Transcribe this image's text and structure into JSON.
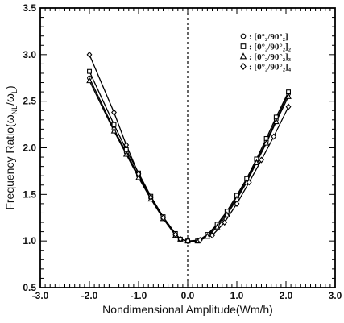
{
  "chart_data": {
    "type": "line",
    "title": "",
    "xlabel": "Nondimensional Amplitude(Wm/h)",
    "ylabel": "Frequency Ratio(ω_NL/ω_L)",
    "ylabel_parts": {
      "main": "Frequency Ratio(ω",
      "sub1": "NL",
      "mid": "/ω",
      "sub2": "L",
      "end": ")"
    },
    "xlim": [
      -3.0,
      3.0
    ],
    "ylim": [
      0.5,
      3.5
    ],
    "xticks": [
      -3.0,
      -2.0,
      -1.0,
      0.0,
      1.0,
      2.0,
      3.0
    ],
    "xtick_labels": [
      "-3.0",
      "-2.0",
      "-1.0",
      "0.0",
      "1.0",
      "2.0",
      "3.0"
    ],
    "yticks": [
      0.5,
      1.0,
      1.5,
      2.0,
      2.5,
      3.0,
      3.5
    ],
    "ytick_labels": [
      "0.5",
      "1.0",
      "1.5",
      "2.0",
      "2.5",
      "3.0",
      "3.5"
    ],
    "grid": false,
    "legend_position": "top-right",
    "series": [
      {
        "name": "[0°₂/90°₂]",
        "marker": "circle",
        "x": [
          -2.0,
          -1.5,
          -1.25,
          -1.0,
          -0.75,
          -0.5,
          -0.25,
          -0.15,
          0.0,
          0.2,
          0.4,
          0.6,
          0.8,
          1.0,
          1.2,
          1.4,
          1.6,
          1.8,
          2.05
        ],
        "y": [
          2.75,
          2.2,
          1.95,
          1.7,
          1.46,
          1.25,
          1.07,
          1.02,
          1.0,
          1.0,
          1.06,
          1.17,
          1.3,
          1.47,
          1.65,
          1.86,
          2.07,
          2.3,
          2.58
        ]
      },
      {
        "name": "[0°₂/90°₂]₂",
        "marker": "square",
        "x": [
          -2.0,
          -1.5,
          -1.25,
          -1.0,
          -0.75,
          -0.5,
          -0.25,
          -0.15,
          0.0,
          0.2,
          0.4,
          0.6,
          0.8,
          1.0,
          1.2,
          1.4,
          1.6,
          1.8,
          2.05
        ],
        "y": [
          2.82,
          2.25,
          1.98,
          1.73,
          1.48,
          1.26,
          1.08,
          1.02,
          1.0,
          1.0,
          1.07,
          1.18,
          1.32,
          1.49,
          1.67,
          1.88,
          2.1,
          2.33,
          2.6
        ]
      },
      {
        "name": "[0°₂/90°₂]₃",
        "marker": "triangle",
        "x": [
          -2.0,
          -1.5,
          -1.25,
          -1.0,
          -0.75,
          -0.5,
          -0.25,
          -0.15,
          0.0,
          0.2,
          0.4,
          0.6,
          0.8,
          1.0,
          1.2,
          1.4,
          1.6,
          1.8,
          2.05
        ],
        "y": [
          2.72,
          2.18,
          1.93,
          1.68,
          1.45,
          1.24,
          1.06,
          1.02,
          1.0,
          1.0,
          1.05,
          1.15,
          1.28,
          1.45,
          1.63,
          1.84,
          2.05,
          2.28,
          2.55
        ]
      },
      {
        "name": "[0°₂/90°₂]₄",
        "marker": "diamond",
        "x": [
          -2.0,
          -1.5,
          -1.25,
          -1.0,
          -0.75,
          -0.5,
          -0.25,
          -0.15,
          0.0,
          0.25,
          0.5,
          0.75,
          1.0,
          1.25,
          1.5,
          1.75,
          2.05
        ],
        "y": [
          3.0,
          2.38,
          2.03,
          1.72,
          1.47,
          1.25,
          1.07,
          1.02,
          1.0,
          1.01,
          1.06,
          1.2,
          1.4,
          1.63,
          1.87,
          2.12,
          2.44
        ]
      }
    ]
  }
}
